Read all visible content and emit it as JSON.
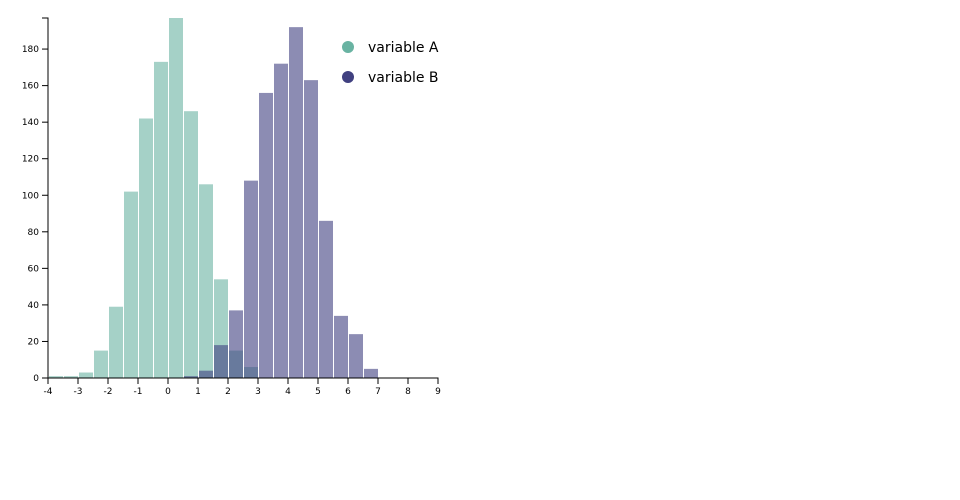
{
  "chart_data": {
    "type": "bar",
    "subtype": "overlapping-histogram",
    "bin_width": 0.5,
    "x_ticks": [
      -4,
      -3,
      -2,
      -1,
      0,
      1,
      2,
      3,
      4,
      5,
      6,
      7,
      8,
      9
    ],
    "y_ticks": [
      0,
      20,
      40,
      60,
      80,
      100,
      120,
      140,
      160,
      180
    ],
    "xlim": [
      -4,
      9
    ],
    "ylim": [
      0,
      197
    ],
    "grid": false,
    "legend_position": "top-right",
    "series": [
      {
        "name": "variable A",
        "color": "#69b3a2",
        "opacity": 0.6,
        "bins": [
          {
            "x0": -4,
            "value": 1
          },
          {
            "x0": -3.5,
            "value": 1
          },
          {
            "x0": -3,
            "value": 3
          },
          {
            "x0": -2.5,
            "value": 15
          },
          {
            "x0": -2,
            "value": 39
          },
          {
            "x0": -1.5,
            "value": 102
          },
          {
            "x0": -1,
            "value": 142
          },
          {
            "x0": -0.5,
            "value": 173
          },
          {
            "x0": 0,
            "value": 197
          },
          {
            "x0": 0.5,
            "value": 146
          },
          {
            "x0": 1,
            "value": 106
          },
          {
            "x0": 1.5,
            "value": 54
          },
          {
            "x0": 2,
            "value": 15
          },
          {
            "x0": 2.5,
            "value": 6
          }
        ]
      },
      {
        "name": "variable B",
        "color": "#404080",
        "opacity": 0.6,
        "bins": [
          {
            "x0": 0.5,
            "value": 1
          },
          {
            "x0": 1,
            "value": 4
          },
          {
            "x0": 1.5,
            "value": 18
          },
          {
            "x0": 2,
            "value": 37
          },
          {
            "x0": 2.5,
            "value": 108
          },
          {
            "x0": 3,
            "value": 156
          },
          {
            "x0": 3.5,
            "value": 172
          },
          {
            "x0": 4,
            "value": 192
          },
          {
            "x0": 4.5,
            "value": 163
          },
          {
            "x0": 5,
            "value": 86
          },
          {
            "x0": 5.5,
            "value": 34
          },
          {
            "x0": 6,
            "value": 24
          },
          {
            "x0": 6.5,
            "value": 5
          }
        ]
      }
    ]
  }
}
